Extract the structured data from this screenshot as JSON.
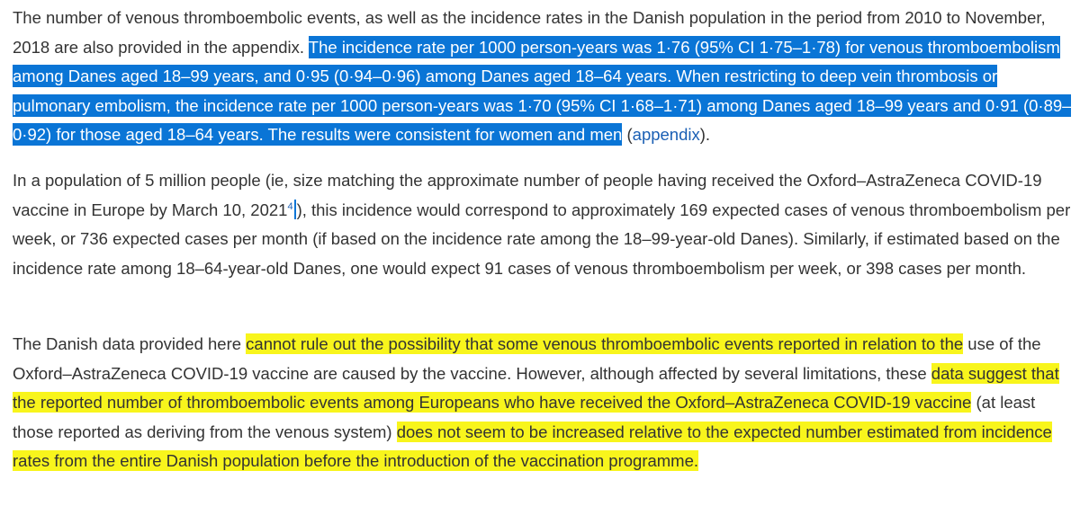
{
  "paragraph1": {
    "plain_text": "The number of venous thromboembolic events, as well as the incidence rates in the Danish population in the period from 2010 to November, 2018 are also provided in the appendix. ",
    "selected_text": "The incidence rate per 1000 person-years was 1·76 (95% CI 1·75–1·78) for venous thromboembolism among Danes aged 18–99 years, and 0·95 (0·94–0·96) among Danes aged 18–64 years. When restricting to deep vein thrombosis or pulmonary embolism, the incidence rate per 1000 person-years was 1·70 (95% CI 1·68–1·71) among Danes aged 18–99 years and 0·91 (0·89–0·92) for those aged 18–64 years. The results were consistent for women and men",
    "link_open": " (",
    "link_text": "appendix",
    "link_close": ")."
  },
  "paragraph2": {
    "text_before_ref": "In a population of 5 million people (ie, size matching the approximate number of people having received the Oxford–AstraZeneca COVID-19 vaccine in Europe by March 10, 2021",
    "reference_number": "4",
    "text_after_ref": "), this incidence would correspond to approximately 169 expected cases of venous thromboembolism per week, or 736 expected cases per month (if based on the incidence rate among the 18–99-year-old Danes). Similarly, if estimated based on the incidence rate among 18–64-year-old Danes, one would expect 91 cases of venous thromboembolism per week, or 398 cases per month."
  },
  "paragraph3": {
    "segment1": "The Danish data provided here ",
    "highlight1": "cannot rule out the possibility that some venous thromboembolic events reported in relation to the",
    "segment2": " use of the Oxford–AstraZeneca COVID-19 vaccine are caused by the vaccine. However, although affected by several limitations, these ",
    "highlight2": "data suggest that the reported number of thromboembolic events among Europeans who have received the Oxford–AstraZeneca COVID-19 vaccine",
    "segment3": " (at least those reported as deriving from the venous system) ",
    "highlight3": "does not seem to be increased relative to the expected number estimated from incidence rates from the entire Danish population before the introduction of the vaccination programme."
  },
  "colors": {
    "text": "#333333",
    "selection": "#0a75d6",
    "highlight": "#f8f51c",
    "link": "#1a5fb4"
  }
}
